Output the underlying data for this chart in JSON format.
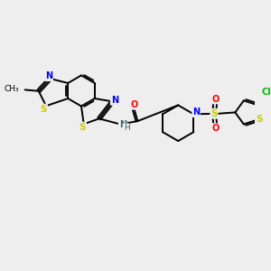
{
  "background_color": "#eeeeee",
  "atom_colors": {
    "C": "#000000",
    "N": "#0000ff",
    "S": "#cccc00",
    "O": "#ff0000",
    "Cl": "#00bb00",
    "H": "#555555"
  },
  "figsize": [
    3.0,
    3.0
  ],
  "dpi": 100,
  "lw": 1.4,
  "dlw": 1.3
}
